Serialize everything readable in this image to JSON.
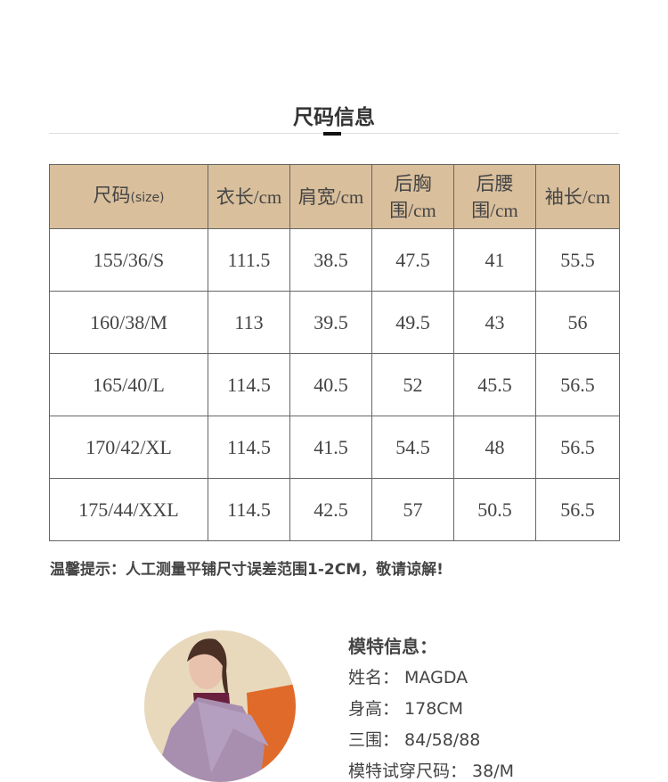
{
  "title": "尺码信息",
  "table": {
    "headers": [
      {
        "main": "尺码",
        "sub": "(size)"
      },
      {
        "main": "衣长/cm"
      },
      {
        "main": "肩宽/cm"
      },
      {
        "main": "后胸",
        "line2": "围/cm"
      },
      {
        "main": "后腰",
        "line2": "围/cm"
      },
      {
        "main": "袖长/cm"
      }
    ],
    "rows": [
      [
        "155/36/S",
        "111.5",
        "38.5",
        "47.5",
        "41",
        "55.5"
      ],
      [
        "160/38/M",
        "113",
        "39.5",
        "49.5",
        "43",
        "56"
      ],
      [
        "165/40/L",
        "114.5",
        "40.5",
        "52",
        "45.5",
        "56.5"
      ],
      [
        "170/42/XL",
        "114.5",
        "41.5",
        "54.5",
        "48",
        "56.5"
      ],
      [
        "175/44/XXL",
        "114.5",
        "42.5",
        "57",
        "50.5",
        "56.5"
      ]
    ]
  },
  "tip": "温馨提示：人工测量平铺尺寸误差范围1-2CM，敬请谅解!",
  "model": {
    "heading": "模特信息：",
    "name": "姓名：  MAGDA",
    "height": "身高：  178CM",
    "measurements": "三围：  84/58/88",
    "size": "模特试穿尺码：  38/M"
  },
  "colors": {
    "header_bg": "#d9bf9c"
  }
}
